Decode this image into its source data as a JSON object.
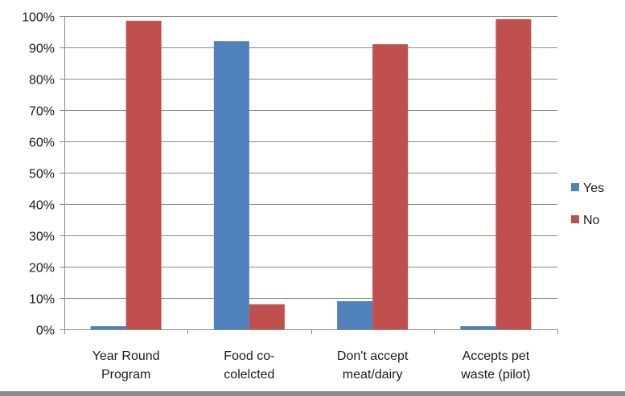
{
  "chart_data": {
    "type": "bar",
    "categories": [
      [
        "Year Round",
        "Program"
      ],
      [
        "Food co-",
        "colelcted"
      ],
      [
        "Don't accept",
        "meat/dairy"
      ],
      [
        "Accepts pet",
        "waste (pilot)"
      ]
    ],
    "series": [
      {
        "name": "Yes",
        "color": "#4f81bd",
        "values": [
          1,
          92,
          9,
          1
        ]
      },
      {
        "name": "No",
        "color": "#c0504d",
        "values": [
          98.5,
          8,
          91,
          99
        ]
      }
    ],
    "ylim": [
      0,
      100
    ],
    "yticks": [
      0,
      10,
      20,
      30,
      40,
      50,
      60,
      70,
      80,
      90,
      100
    ],
    "ytick_format": "percent",
    "grid": true,
    "legend_position": "right"
  }
}
